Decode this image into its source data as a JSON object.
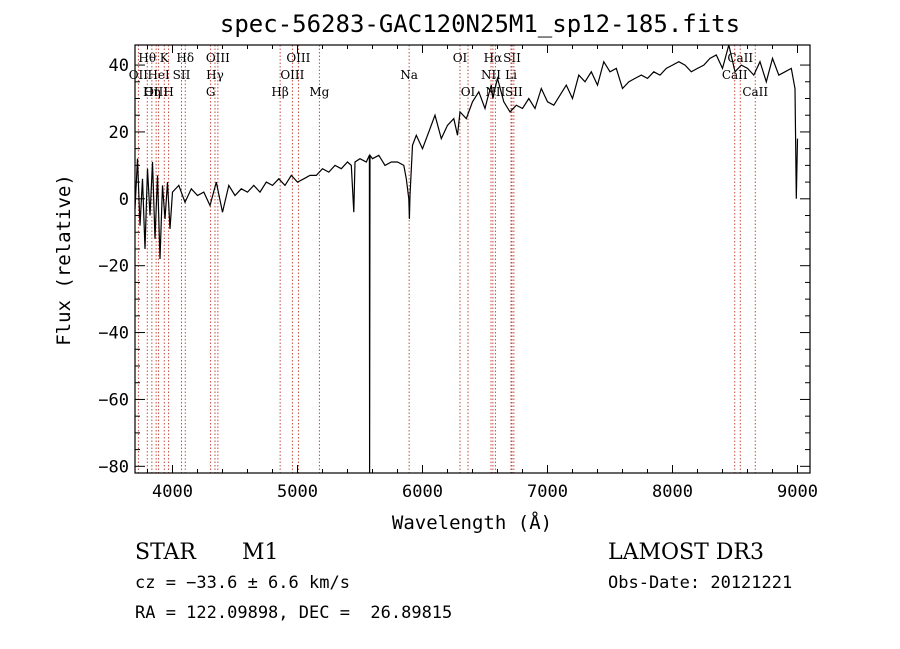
{
  "chart_data": {
    "type": "line",
    "title": "spec-56283-GAC120N25M1_sp12-185.fits",
    "xlabel": "Wavelength (Å)",
    "ylabel": "Flux (relative)",
    "xlim": [
      3700,
      9100
    ],
    "ylim": [
      -82,
      46
    ],
    "xticks": [
      4000,
      5000,
      6000,
      7000,
      8000,
      9000
    ],
    "yticks": [
      -80,
      -60,
      -40,
      -20,
      0,
      20,
      40
    ],
    "series": [
      {
        "name": "flux",
        "x": [
          3700,
          3720,
          3740,
          3760,
          3780,
          3800,
          3820,
          3840,
          3860,
          3880,
          3900,
          3920,
          3940,
          3960,
          3980,
          4000,
          4050,
          4100,
          4150,
          4200,
          4250,
          4300,
          4350,
          4400,
          4450,
          4500,
          4550,
          4600,
          4650,
          4700,
          4750,
          4800,
          4850,
          4900,
          4950,
          5000,
          5050,
          5100,
          5150,
          5200,
          5250,
          5300,
          5350,
          5400,
          5430,
          5450,
          5460,
          5500,
          5550,
          5575,
          5577,
          5580,
          5600,
          5650,
          5700,
          5750,
          5800,
          5850,
          5870,
          5890,
          5895,
          5900,
          5920,
          5950,
          6000,
          6050,
          6100,
          6150,
          6200,
          6250,
          6280,
          6300,
          6350,
          6400,
          6450,
          6500,
          6520,
          6550,
          6563,
          6580,
          6600,
          6650,
          6700,
          6750,
          6800,
          6850,
          6900,
          6950,
          7000,
          7050,
          7100,
          7150,
          7200,
          7250,
          7300,
          7350,
          7400,
          7450,
          7500,
          7550,
          7600,
          7650,
          7700,
          7750,
          7800,
          7850,
          7900,
          7950,
          8000,
          8050,
          8100,
          8150,
          8200,
          8250,
          8300,
          8350,
          8400,
          8450,
          8500,
          8550,
          8600,
          8650,
          8700,
          8750,
          8800,
          8850,
          8900,
          8950,
          8980,
          8990,
          9000
        ],
        "values": [
          -3,
          12,
          -8,
          6,
          -15,
          9,
          -5,
          11,
          -12,
          7,
          -18,
          4,
          -6,
          5,
          -9,
          2,
          4,
          -1,
          3,
          1,
          2,
          -2,
          5,
          -4,
          4,
          1,
          3,
          2,
          4,
          2,
          5,
          4,
          6,
          4,
          7,
          5,
          6,
          7,
          7,
          9,
          8,
          10,
          9,
          11,
          10,
          -4,
          11,
          12,
          11,
          13,
          -82,
          13,
          12,
          13,
          10,
          11,
          11,
          10,
          6,
          0,
          -6,
          1,
          16,
          19,
          15,
          20,
          25,
          18,
          22,
          24,
          19,
          26,
          24,
          29,
          32,
          27,
          30,
          34,
          30,
          33,
          36,
          29,
          26,
          28,
          27,
          30,
          27,
          33,
          29,
          28,
          31,
          34,
          30,
          37,
          35,
          38,
          34,
          41,
          38,
          39,
          33,
          35,
          36,
          37,
          36,
          38,
          37,
          39,
          40,
          41,
          40,
          38,
          39,
          40,
          42,
          43,
          39,
          46,
          38,
          40,
          39,
          37,
          41,
          35,
          42,
          37,
          38,
          39,
          33,
          0,
          18
        ]
      }
    ],
    "lines": [
      {
        "label": "Hθ",
        "wavelength": 3798,
        "row": 1
      },
      {
        "label": "OII",
        "wavelength": 3727,
        "row": 2
      },
      {
        "label": "OIII",
        "wavelength": 3869,
        "row": 3
      },
      {
        "label": "HeI",
        "wavelength": 3889,
        "row": 2
      },
      {
        "label": "K",
        "wavelength": 3934,
        "row": 1
      },
      {
        "label": "Hη",
        "wavelength": 3835,
        "row": 3
      },
      {
        "label": "H",
        "wavelength": 3969,
        "row": 3
      },
      {
        "label": "SII",
        "wavelength": 4072,
        "row": 2
      },
      {
        "label": "Hδ",
        "wavelength": 4102,
        "row": 1
      },
      {
        "label": "OIII",
        "wavelength": 4363,
        "row": 1
      },
      {
        "label": "Hγ",
        "wavelength": 4340,
        "row": 2
      },
      {
        "label": "G",
        "wavelength": 4305,
        "row": 3
      },
      {
        "label": "Hβ",
        "wavelength": 4861,
        "row": 3
      },
      {
        "label": "OIII",
        "wavelength": 5007,
        "row": 1
      },
      {
        "label": "OIII",
        "wavelength": 4959,
        "row": 2
      },
      {
        "label": "Mg",
        "wavelength": 5175,
        "row": 3
      },
      {
        "label": "Na",
        "wavelength": 5893,
        "row": 2
      },
      {
        "label": "OI",
        "wavelength": 6300,
        "row": 1
      },
      {
        "label": "OI",
        "wavelength": 6364,
        "row": 3
      },
      {
        "label": "Hα",
        "wavelength": 6563,
        "row": 1
      },
      {
        "label": "SII",
        "wavelength": 6716,
        "row": 1
      },
      {
        "label": "NII",
        "wavelength": 6548,
        "row": 2
      },
      {
        "label": "Li",
        "wavelength": 6708,
        "row": 2
      },
      {
        "label": "NII",
        "wavelength": 6583,
        "row": 3
      },
      {
        "label": "SII",
        "wavelength": 6731,
        "row": 3
      },
      {
        "label": "CaII",
        "wavelength": 8542,
        "row": 1
      },
      {
        "label": "CaII",
        "wavelength": 8498,
        "row": 2
      },
      {
        "label": "CaII",
        "wavelength": 8662,
        "row": 3
      }
    ]
  },
  "info": {
    "class": "STAR",
    "subclass": "M1",
    "survey": "LAMOST DR3",
    "cz": "cz = −33.6 ± 6.6 km/s",
    "obs_date": "Obs-Date: 20121221",
    "coords": "RA = 122.09898, DEC =  26.89815"
  }
}
